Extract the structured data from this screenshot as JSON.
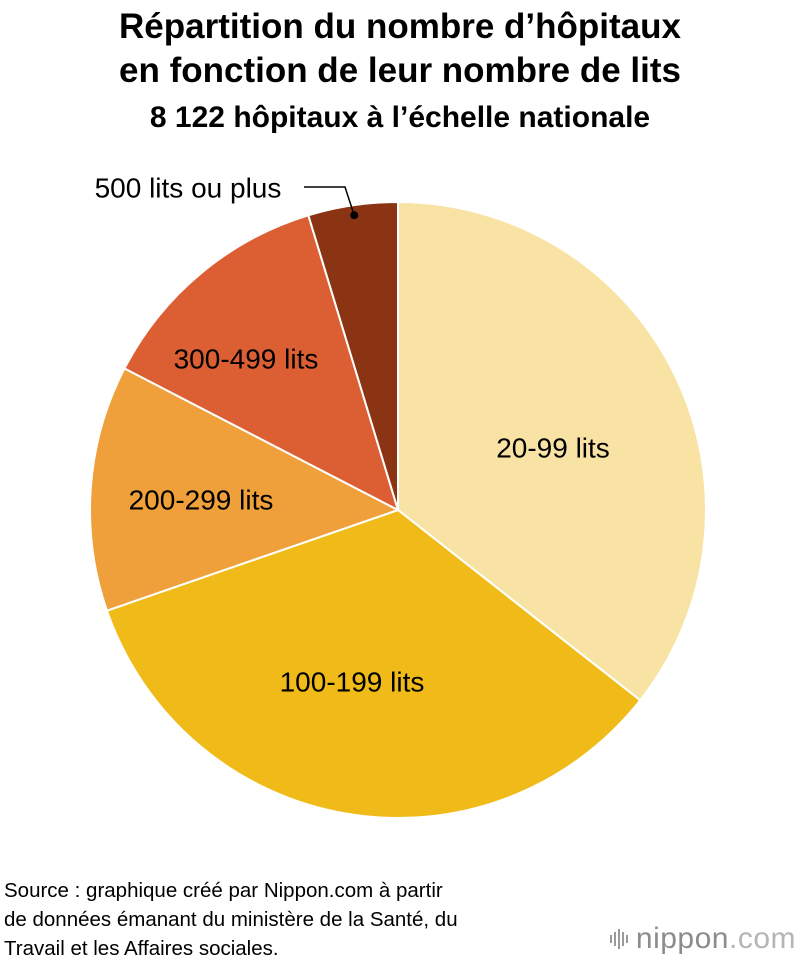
{
  "header": {
    "title_line1": "Répartition du nombre d’hôpitaux",
    "title_line2": "en fonction de leur nombre de lits",
    "subtitle": "8 122 hôpitaux à l’échelle nationale"
  },
  "chart_data": {
    "type": "pie",
    "title": "Répartition du nombre d’hôpitaux en fonction de leur nombre de lits",
    "subtitle": "8 122 hôpitaux à l’échelle nationale",
    "unit": "%",
    "start": "12 o'clock",
    "direction": "clockwise",
    "slices": [
      {
        "label": "20-99 lits",
        "value": 35.6,
        "color": "#f8e3a5"
      },
      {
        "label": "100-199 lits",
        "value": 34.1,
        "color": "#f0bb19"
      },
      {
        "label": "200-299 lits",
        "value": 12.9,
        "color": "#f0a03a"
      },
      {
        "label": "300-499 lits",
        "value": 12.7,
        "color": "#dc5f33"
      },
      {
        "label": "500 lits ou plus",
        "value": 4.7,
        "color": "#8b3414"
      }
    ]
  },
  "footer": {
    "source_line1": "Source : graphique créé par Nippon.com à partir",
    "source_line2": "de données émanant du ministère de la Santé, du",
    "source_line3": "Travail et les Affaires sociales.",
    "logo_word": "nippon",
    "logo_tld": ".com"
  }
}
